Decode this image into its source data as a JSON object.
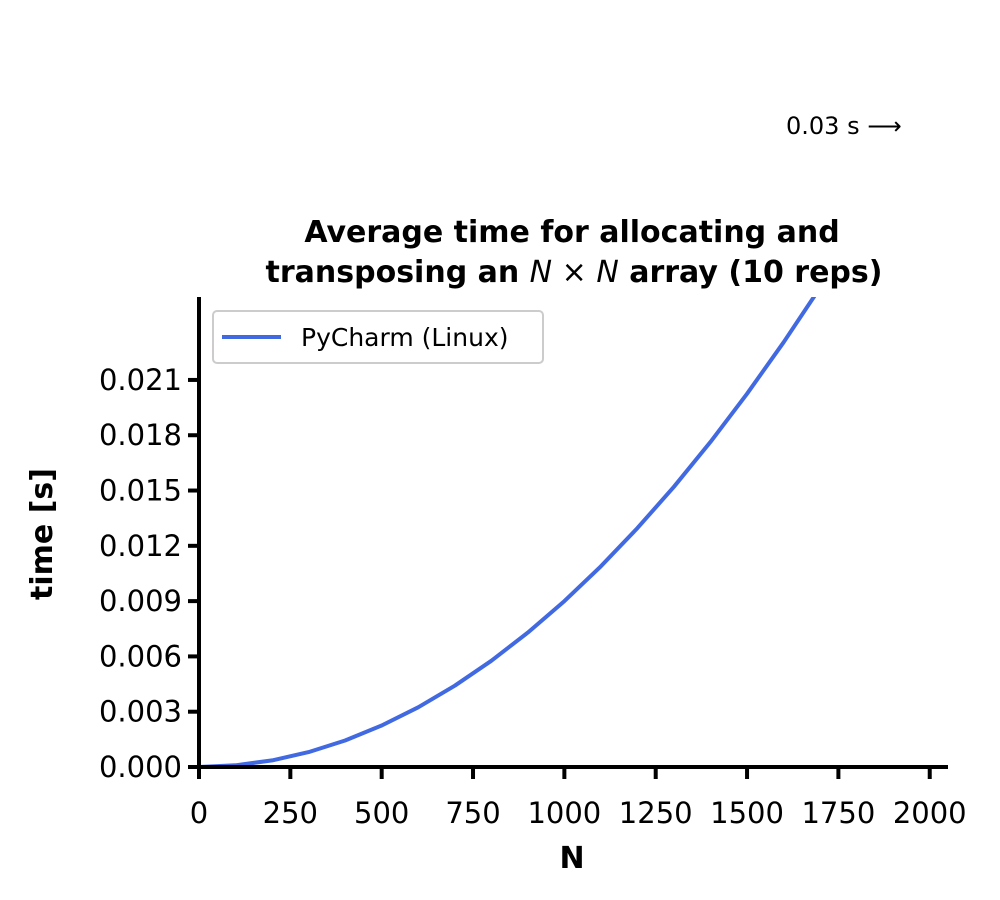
{
  "annotation": "0.03 s ⟶",
  "chart_data": {
    "type": "line",
    "title_line1": "Average time for allocating and",
    "title_line2_pre": "transposing an ",
    "title_line2_math_n1": "N",
    "title_line2_math_times": " × ",
    "title_line2_math_n2": "N",
    "title_line2_post": " array (10 reps)",
    "xlabel": "N",
    "ylabel": "time [s]",
    "xlim": [
      0,
      2050
    ],
    "ylim": [
      0,
      0.0255
    ],
    "xticks": [
      0,
      250,
      500,
      750,
      1000,
      1250,
      1500,
      1750,
      2000
    ],
    "xtick_labels": [
      "0",
      "250",
      "500",
      "750",
      "1000",
      "1250",
      "1500",
      "1750",
      "2000"
    ],
    "yticks": [
      0,
      0.003,
      0.006,
      0.009,
      0.012,
      0.015,
      0.018,
      0.021
    ],
    "ytick_labels": [
      "0.000",
      "0.003",
      "0.006",
      "0.009",
      "0.012",
      "0.015",
      "0.018",
      "0.021"
    ],
    "grid": false,
    "legend_position": "top-left",
    "series": [
      {
        "name": "PyCharm (Linux)",
        "color": "#4169e1",
        "x": [
          0,
          100,
          200,
          300,
          400,
          500,
          600,
          700,
          800,
          900,
          1000,
          1100,
          1200,
          1300,
          1400,
          1500,
          1600,
          1700,
          1725
        ],
        "y": [
          0,
          9e-05,
          0.00036,
          0.00081,
          0.00144,
          0.00225,
          0.00324,
          0.00441,
          0.00576,
          0.00729,
          0.009,
          0.01089,
          0.01296,
          0.01521,
          0.01764,
          0.02025,
          0.02304,
          0.02601,
          0.02678
        ]
      }
    ]
  }
}
